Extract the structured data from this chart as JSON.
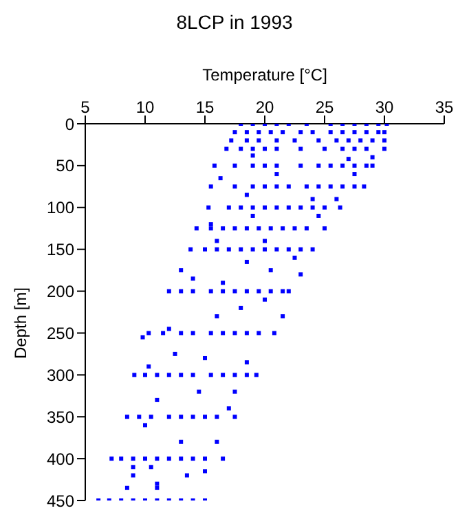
{
  "chart_data": {
    "type": "scatter",
    "title": "8LCP in 1993",
    "xlabel": "Temperature [°C]",
    "ylabel": "Depth [m]",
    "color": "#0000ff",
    "marker": "square",
    "xlim": [
      5,
      35
    ],
    "xticks": [
      5,
      10,
      15,
      20,
      25,
      30,
      35
    ],
    "ylim": [
      450,
      0
    ],
    "yticks": [
      0,
      50,
      100,
      150,
      200,
      250,
      300,
      350,
      400,
      450
    ],
    "x": [
      18,
      19,
      20,
      21,
      22,
      23.5,
      25.5,
      26.5,
      27.5,
      28.5,
      29.5,
      30.2,
      17.5,
      18.5,
      19.5,
      20.5,
      21.5,
      23,
      24,
      25.5,
      26.5,
      27.5,
      28.5,
      29.5,
      30,
      17.2,
      18.5,
      19.5,
      21,
      22.5,
      24.5,
      26,
      27,
      28,
      29,
      30,
      16.8,
      18,
      19,
      20,
      21,
      23,
      25,
      26.5,
      27.5,
      28.5,
      30,
      15.8,
      17.5,
      19,
      20,
      21,
      23,
      24.5,
      25.5,
      26.5,
      27.5,
      28.5,
      29,
      15.5,
      17.5,
      19,
      20,
      21,
      22,
      23.5,
      24.5,
      25.5,
      26.5,
      27.5,
      28.3,
      15.3,
      17,
      18,
      19,
      20,
      21,
      22,
      23,
      24,
      25,
      26.3,
      14.3,
      15.5,
      16.5,
      17.5,
      18.5,
      19.5,
      20.5,
      21.5,
      22.5,
      23.5,
      25,
      13.8,
      15,
      16,
      17,
      18,
      19,
      20,
      21,
      22,
      23,
      24,
      12,
      13,
      14,
      15.5,
      16.5,
      17.5,
      18.5,
      19.5,
      20.5,
      21.5,
      22,
      10.3,
      11.5,
      13,
      14,
      15.5,
      16.5,
      17.5,
      18.5,
      19.5,
      20.8,
      9.1,
      10,
      11,
      12,
      13,
      14,
      15.5,
      16.5,
      17.5,
      18.5,
      19.3,
      8.5,
      9.5,
      10.5,
      12,
      13,
      14,
      15,
      16,
      17.5,
      7.2,
      8,
      9,
      10,
      11,
      12,
      13,
      14,
      15,
      16.5,
      6.1,
      7,
      8,
      9,
      10,
      11,
      12,
      13,
      14,
      15,
      19,
      27,
      29,
      21,
      27.5,
      16.3,
      18.5,
      24,
      26,
      19,
      24.5,
      15.5,
      16,
      20,
      22.5,
      18.5,
      13,
      14,
      20.5,
      23,
      16.5,
      20,
      21.5,
      12,
      16,
      18,
      9.8,
      12.5,
      15,
      18.5,
      10.3,
      14.5,
      17.5,
      11,
      17,
      10,
      13,
      16,
      9,
      10.5,
      9,
      8.5,
      11,
      13.5,
      15,
      11
    ],
    "values": [
      0,
      0,
      0,
      0,
      0,
      0,
      0,
      0,
      0,
      0,
      0,
      0,
      10,
      10,
      10,
      10,
      10,
      10,
      10,
      10,
      10,
      10,
      10,
      10,
      10,
      20,
      20,
      20,
      20,
      20,
      20,
      20,
      20,
      20,
      20,
      20,
      30,
      30,
      30,
      30,
      30,
      30,
      30,
      30,
      30,
      30,
      30,
      50,
      50,
      50,
      50,
      50,
      50,
      50,
      50,
      50,
      50,
      50,
      50,
      75,
      75,
      75,
      75,
      75,
      75,
      75,
      75,
      75,
      75,
      75,
      75,
      100,
      100,
      100,
      100,
      100,
      100,
      100,
      100,
      100,
      100,
      100,
      125,
      125,
      125,
      125,
      125,
      125,
      125,
      125,
      125,
      125,
      125,
      150,
      150,
      150,
      150,
      150,
      150,
      150,
      150,
      150,
      150,
      150,
      200,
      200,
      200,
      200,
      200,
      200,
      200,
      200,
      200,
      200,
      200,
      250,
      250,
      250,
      250,
      250,
      250,
      250,
      250,
      250,
      250,
      300,
      300,
      300,
      300,
      300,
      300,
      300,
      300,
      300,
      300,
      300,
      350,
      350,
      350,
      350,
      350,
      350,
      350,
      350,
      350,
      400,
      400,
      400,
      400,
      400,
      400,
      400,
      400,
      400,
      400,
      450,
      450,
      450,
      450,
      450,
      450,
      450,
      450,
      450,
      450,
      38,
      42,
      40,
      60,
      60,
      65,
      85,
      90,
      90,
      110,
      110,
      120,
      140,
      140,
      160,
      165,
      175,
      185,
      175,
      180,
      190,
      210,
      230,
      245,
      230,
      220,
      255,
      275,
      280,
      285,
      290,
      320,
      320,
      330,
      340,
      360,
      380,
      380,
      410,
      410,
      420,
      435,
      430,
      420,
      415,
      435
    ]
  }
}
